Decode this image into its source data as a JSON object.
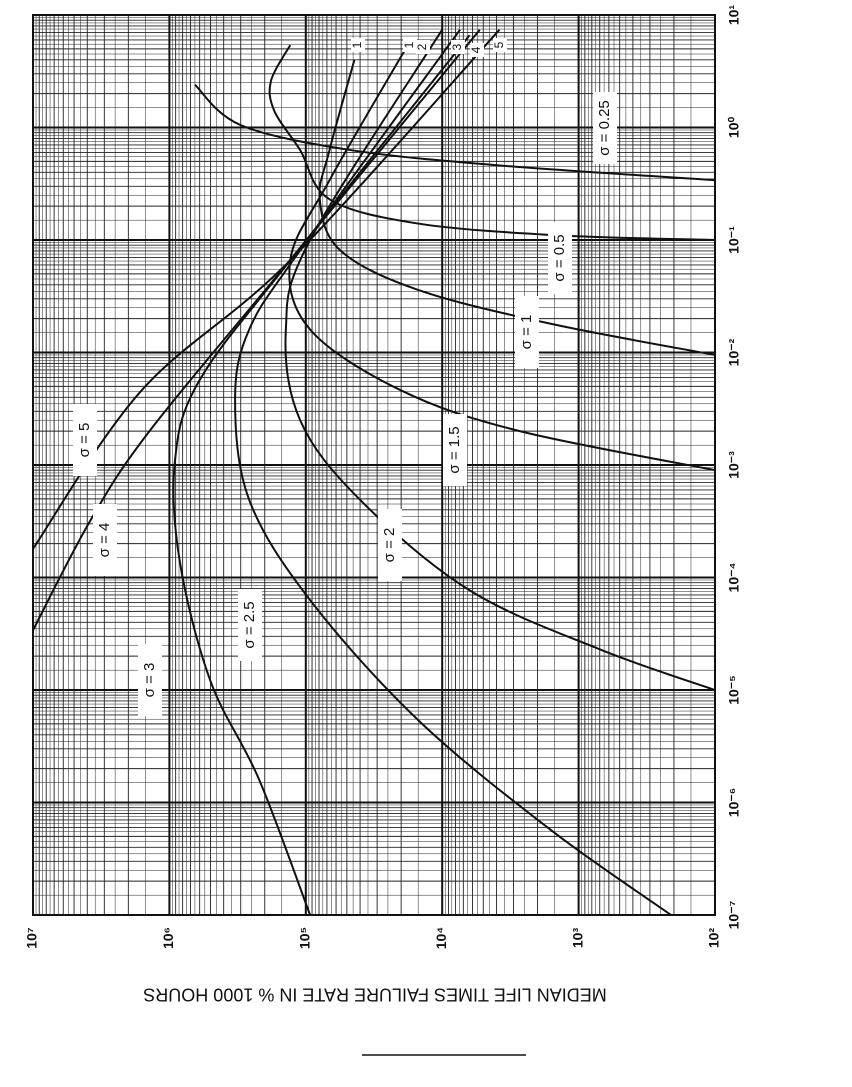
{
  "chart_data": {
    "type": "line",
    "ylabel": "MEDIAN LIFE TIMES FAILURE RATE IN % 1000 HOURS",
    "log_x": true,
    "log_y": true,
    "grid": true,
    "xlim": [
      1e-07,
      10
    ],
    "xticks": [
      {
        "value": 1e-07,
        "label": "10⁻⁷"
      },
      {
        "value": 1e-06,
        "label": "10⁻⁶"
      },
      {
        "value": 1e-05,
        "label": "10⁻⁵"
      },
      {
        "value": 0.0001,
        "label": "10⁻⁴"
      },
      {
        "value": 0.001,
        "label": "10⁻³"
      },
      {
        "value": 0.01,
        "label": "10⁻²"
      },
      {
        "value": 0.1,
        "label": "10⁻¹"
      },
      {
        "value": 1,
        "label": "10⁰"
      },
      {
        "value": 10,
        "label": "10¹"
      }
    ],
    "ylim": [
      100,
      10000000
    ],
    "yticks": [
      {
        "value": 10000000,
        "label": "10⁷"
      },
      {
        "value": 1000000,
        "label": "10⁶"
      },
      {
        "value": 100000,
        "label": "10⁵"
      },
      {
        "value": 10000,
        "label": "10⁴"
      },
      {
        "value": 1000,
        "label": "10³"
      },
      {
        "value": 100,
        "label": "10²"
      }
    ],
    "curve_numbers": [
      "1",
      "1",
      "2",
      "3",
      "4",
      "5"
    ],
    "series": [
      {
        "name": "σ = 0.25",
        "color": "#111",
        "x": [
          2.4,
          1.05,
          0.63,
          0.46,
          0.34
        ],
        "values": [
          650000,
          300000,
          47000,
          3800,
          100
        ]
      },
      {
        "name": "σ = 0.5",
        "color": "#111",
        "x": [
          5.4,
          2.6,
          1.4,
          0.63,
          0.23,
          0.14,
          0.11,
          0.1
        ],
        "values": [
          130000,
          180000,
          170000,
          110000,
          67000,
          15000,
          1400,
          100
        ]
      },
      {
        "name": "σ = 1",
        "color": "#111",
        "x": [
          4.0,
          0.63,
          0.23,
          0.081,
          0.036,
          0.018,
          0.0095
        ],
        "values": [
          44000,
          67000,
          79000,
          56000,
          15000,
          1600,
          100
        ]
      },
      {
        "name": "σ = 1.5",
        "color": "#111",
        "x": [
          6.0,
          0.34,
          0.066,
          0.016,
          0.0046,
          0.002,
          0.0009
        ],
        "values": [
          17000,
          67000,
          130000,
          93000,
          20000,
          2700,
          100
        ]
      },
      {
        "name": "σ = 2",
        "color": "#111",
        "x": [
          7.4,
          0.1,
          0.016,
          0.0025,
          0.00049,
          7.7e-05,
          2.3e-05,
          1e-05
        ],
        "values": [
          10000,
          93000,
          140000,
          110000,
          40000,
          6300,
          700,
          100
        ]
      },
      {
        "name": "σ = 2.5",
        "color": "#111",
        "x": [
          7.4,
          0.081,
          0.016,
          0.0038,
          0.00049,
          6.3e-05,
          5.4e-06,
          5.7e-07,
          1e-07
        ],
        "values": [
          7400,
          110000,
          260000,
          330000,
          260000,
          93000,
          15000,
          1600,
          210
        ]
      },
      {
        "name": "σ = 3",
        "color": "#111",
        "x": [
          6.6,
          0.066,
          0.0057,
          0.0011,
          0.00014,
          1.2e-05,
          1.6e-06,
          1e-07
        ],
        "values": [
          6300,
          130000,
          600000,
          910000,
          840000,
          500000,
          220000,
          93000
        ]
      },
      {
        "name": "σ = 4",
        "color": "#111",
        "x": [
          7.4,
          0.054,
          0.002,
          0.00032,
          3.4e-05
        ],
        "values": [
          5300,
          150000,
          1400000,
          3800000,
          10000000
        ]
      },
      {
        "name": "σ = 5",
        "color": "#111",
        "x": [
          7.4,
          0.066,
          0.0046,
          0.00018
        ],
        "values": [
          3800,
          130000,
          1600000,
          10000000
        ]
      }
    ]
  }
}
